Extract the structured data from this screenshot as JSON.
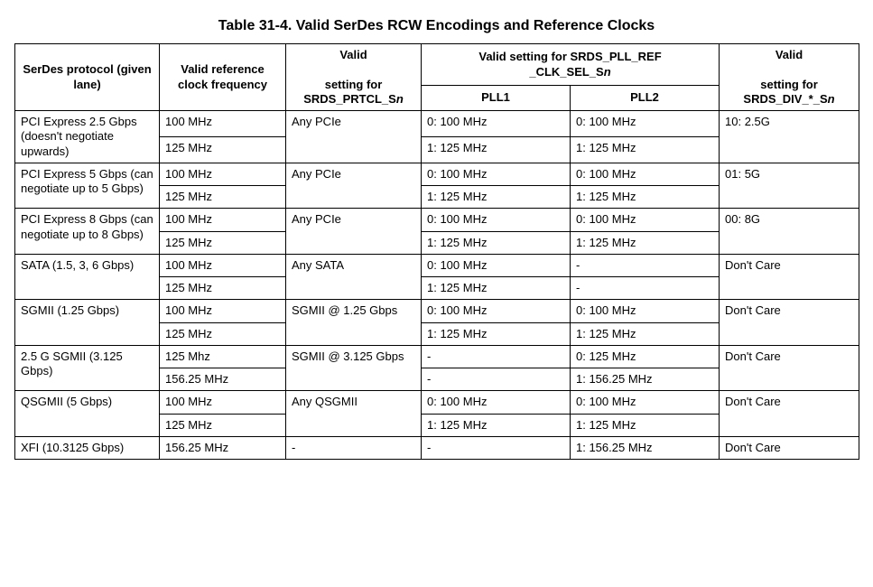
{
  "table": {
    "caption": "Table 31-4.  Valid SerDes RCW Encodings and Reference Clocks",
    "background_color": "#ffffff",
    "border_color": "#000000",
    "font_family": "Arial",
    "caption_fontsize": 16,
    "cell_fontsize": 13,
    "header": {
      "col1": "SerDes protocol (given lane)",
      "col2": "Valid reference clock frequency",
      "col3_line1": "Valid",
      "col3_line2": "setting for",
      "col3_line3": "SRDS_PRTCL_S",
      "col3_line3_ital": "n",
      "col45_span_line1": "Valid setting for SRDS_PLL_REF",
      "col45_span_line2": "_CLK_SEL_S",
      "col45_span_line2_ital": "n",
      "col4_sub": "PLL1",
      "col5_sub": "PLL2",
      "col6_line1": "Valid",
      "col6_line2": "setting for",
      "col6_line3": "SRDS_DIV_*_S",
      "col6_line3_ital": "n"
    },
    "groups": [
      {
        "protocol": "PCI Express 2.5 Gbps (doesn't negotiate upwards)",
        "prtcl": "Any PCIe",
        "div": "10: 2.5G",
        "rows": [
          {
            "clk": "100 MHz",
            "pll1": "0: 100 MHz",
            "pll2": "0: 100 MHz"
          },
          {
            "clk": "125 MHz",
            "pll1": "1: 125 MHz",
            "pll2": "1: 125 MHz"
          }
        ]
      },
      {
        "protocol": "PCI Express 5 Gbps (can negotiate up to 5 Gbps)",
        "prtcl": "Any PCIe",
        "div": "01: 5G",
        "rows": [
          {
            "clk": "100 MHz",
            "pll1": "0: 100 MHz",
            "pll2": "0: 100 MHz"
          },
          {
            "clk": "125 MHz",
            "pll1": "1: 125 MHz",
            "pll2": "1: 125 MHz"
          }
        ]
      },
      {
        "protocol": "PCI Express 8 Gbps (can negotiate up to 8 Gbps)",
        "prtcl": "Any PCIe",
        "div": "00: 8G",
        "rows": [
          {
            "clk": "100 MHz",
            "pll1": "0: 100 MHz",
            "pll2": "0: 100 MHz"
          },
          {
            "clk": "125 MHz",
            "pll1": "1: 125 MHz",
            "pll2": "1: 125 MHz"
          }
        ]
      },
      {
        "protocol": "SATA (1.5, 3, 6 Gbps)",
        "prtcl": "Any SATA",
        "div": "Don't Care",
        "rows": [
          {
            "clk": "100 MHz",
            "pll1": "0: 100 MHz",
            "pll2": "-"
          },
          {
            "clk": "125 MHz",
            "pll1": "1: 125 MHz",
            "pll2": "-"
          }
        ]
      },
      {
        "protocol": "SGMII (1.25 Gbps)",
        "prtcl": "SGMII @ 1.25 Gbps",
        "div": "Don't Care",
        "rows": [
          {
            "clk": "100 MHz",
            "pll1": "0: 100 MHz",
            "pll2": "0: 100 MHz"
          },
          {
            "clk": "125 MHz",
            "pll1": "1: 125 MHz",
            "pll2": "1: 125 MHz"
          }
        ]
      },
      {
        "protocol": "2.5 G SGMII (3.125 Gbps)",
        "prtcl": "SGMII @ 3.125 Gbps",
        "div": "Don't Care",
        "rows": [
          {
            "clk": "125 Mhz",
            "pll1": "-",
            "pll2": "0: 125 MHz"
          },
          {
            "clk": "156.25 MHz",
            "pll1": "-",
            "pll2": "1: 156.25 MHz"
          }
        ]
      },
      {
        "protocol": "QSGMII (5 Gbps)",
        "prtcl": "Any QSGMII",
        "div": "Don't Care",
        "rows": [
          {
            "clk": "100 MHz",
            "pll1": "0: 100 MHz",
            "pll2": "0: 100 MHz"
          },
          {
            "clk": "125 MHz",
            "pll1": "1: 125 MHz",
            "pll2": "1: 125 MHz"
          }
        ]
      },
      {
        "protocol": "XFI (10.3125 Gbps)",
        "prtcl": "-",
        "div": "Don't Care",
        "rows": [
          {
            "clk": "156.25 MHz",
            "pll1": "-",
            "pll2": "1: 156.25 MHz"
          }
        ]
      }
    ]
  }
}
